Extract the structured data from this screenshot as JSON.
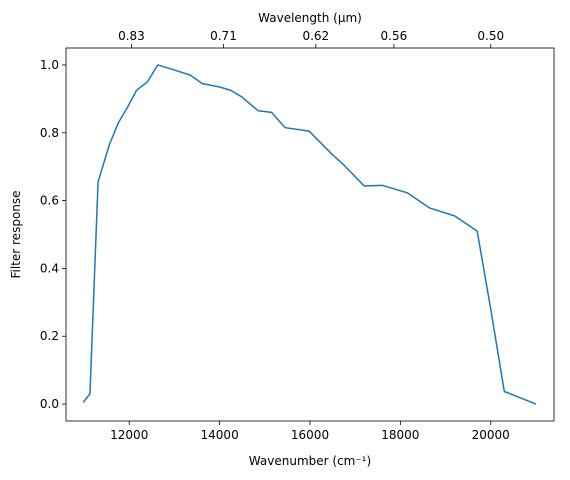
{
  "chart_data": {
    "type": "line",
    "xlabel": "Wavenumber (cm⁻¹)",
    "ylabel": "Filter response",
    "top_xlabel": "Wavelength (μm)",
    "xlim": [
      10600,
      21400
    ],
    "ylim": [
      -0.05,
      1.05
    ],
    "x_ticks": [
      12000,
      14000,
      16000,
      18000,
      20000
    ],
    "y_ticks": [
      0.0,
      0.2,
      0.4,
      0.6,
      0.8,
      1.0
    ],
    "x_tick_labels": [
      "12000",
      "14000",
      "16000",
      "18000",
      "20000"
    ],
    "y_tick_labels": [
      "0.0",
      "0.2",
      "0.4",
      "0.6",
      "0.8",
      "1.0"
    ],
    "top_ticks": [
      {
        "label": "0.83",
        "wavenumber": 12048
      },
      {
        "label": "0.71",
        "wavenumber": 14085
      },
      {
        "label": "0.62",
        "wavenumber": 16129
      },
      {
        "label": "0.56",
        "wavenumber": 17857
      },
      {
        "label": "0.50",
        "wavenumber": 20000
      }
    ],
    "grid": false,
    "series": [
      {
        "color": "#1f77b4",
        "x": [
          10980,
          11130,
          11310,
          11560,
          11760,
          11960,
          12160,
          12400,
          12630,
          13000,
          13350,
          13620,
          14000,
          14250,
          14500,
          14850,
          15150,
          15450,
          15980,
          16500,
          16750,
          17200,
          17600,
          18150,
          18650,
          19200,
          19700,
          20000,
          20300,
          21000
        ],
        "y": [
          0.005,
          0.03,
          0.655,
          0.765,
          0.83,
          0.875,
          0.925,
          0.95,
          1.0,
          0.985,
          0.97,
          0.945,
          0.935,
          0.925,
          0.905,
          0.865,
          0.86,
          0.815,
          0.805,
          0.735,
          0.705,
          0.643,
          0.645,
          0.623,
          0.578,
          0.555,
          0.51,
          0.28,
          0.037,
          0.0
        ]
      }
    ]
  }
}
